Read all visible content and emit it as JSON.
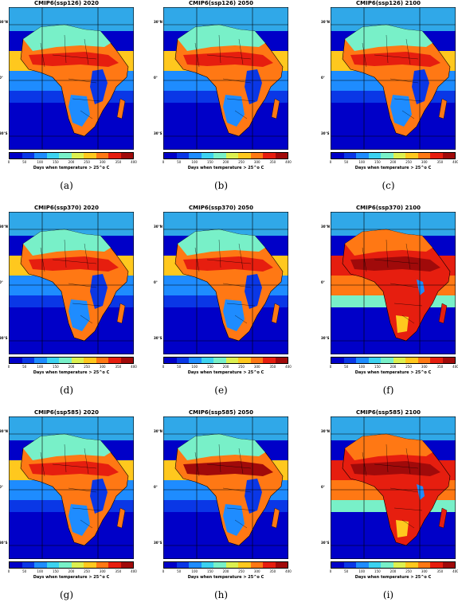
{
  "panels": [
    {
      "title": "CMIP6(ssp126) 2020",
      "caption": "(a)",
      "level": 0
    },
    {
      "title": "CMIP6(ssp126) 2050",
      "caption": "(b)",
      "level": 0
    },
    {
      "title": "CMIP6(ssp126) 2100",
      "caption": "(c)",
      "level": 0
    },
    {
      "title": "CMIP6(ssp370) 2020",
      "caption": "(d)",
      "level": 0
    },
    {
      "title": "CMIP6(ssp370) 2050",
      "caption": "(e)",
      "level": 0
    },
    {
      "title": "CMIP6(ssp370) 2100",
      "caption": "(f)",
      "level": 2
    },
    {
      "title": "CMIP6(ssp585) 2020",
      "caption": "(g)",
      "level": 0
    },
    {
      "title": "CMIP6(ssp585) 2050",
      "caption": "(h)",
      "level": 1
    },
    {
      "title": "CMIP6(ssp585) 2100",
      "caption": "(i)",
      "level": 2
    }
  ],
  "lat_labels": [
    "30°N",
    "0°",
    "30°S"
  ],
  "colorbar": {
    "label": "Days when temperature > 25^o C",
    "ticks": [
      "0",
      "50",
      "100",
      "150",
      "200",
      "250",
      "300",
      "350",
      "400"
    ],
    "colors": [
      "#0000c8",
      "#0a37e6",
      "#1e8cff",
      "#3cd2f0",
      "#78f0c8",
      "#dcf050",
      "#ffc81e",
      "#ff7814",
      "#e61e0f",
      "#a00a0a"
    ]
  }
}
